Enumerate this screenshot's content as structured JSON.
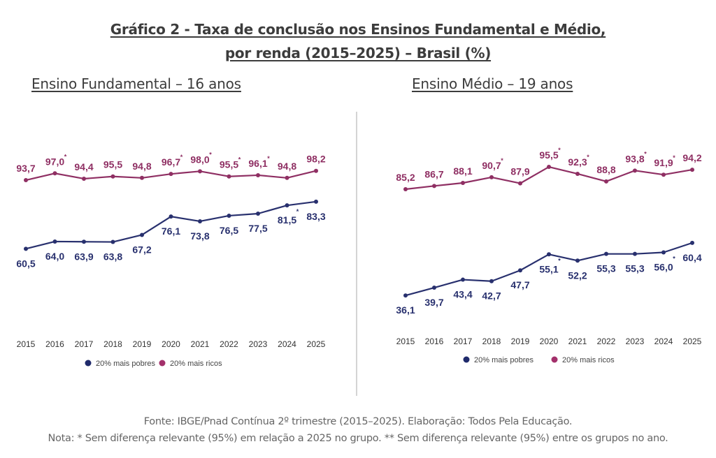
{
  "title_line1": "Gráfico 2 - Taxa de conclusão nos Ensinos Fundamental e Médio,",
  "title_line2": "por renda (2015–2025) – Brasil (%)",
  "footer": {
    "source": "Fonte: IBGE/Pnad Contínua 2º trimestre (2015–2025). Elaboração: Todos Pela Educação.",
    "note": "Nota: * Sem diferença relevante (95%) em relação a 2025 no grupo. ** Sem diferença relevante (95%) entre os grupos no ano."
  },
  "colors": {
    "pobres": "#28306e",
    "ricos": "#8f2f63",
    "legend_pobres": "#1f2a6b",
    "legend_ricos": "#a3306b"
  },
  "chart_data": [
    {
      "type": "line",
      "title": "Ensino Fundamental – 16 anos",
      "xlabel": "",
      "ylabel": "",
      "x": [
        "2015",
        "2016",
        "2017",
        "2018",
        "2019",
        "2020",
        "2021",
        "2022",
        "2023",
        "2024",
        "2025"
      ],
      "series": [
        {
          "name": "20% mais pobres",
          "key": "pobres",
          "values": [
            60.5,
            64.0,
            63.9,
            63.8,
            67.2,
            76.1,
            73.8,
            76.5,
            77.5,
            81.5,
            83.3
          ],
          "labels": [
            "60,5",
            "64,0",
            "63,9",
            "63,8",
            "67,2",
            "76,1",
            "73,8",
            "76,5",
            "77,5",
            "81,5",
            "83,3"
          ],
          "asterisk": [
            false,
            false,
            false,
            false,
            false,
            false,
            false,
            false,
            false,
            true,
            false
          ]
        },
        {
          "name": "20% mais ricos",
          "key": "ricos",
          "values": [
            93.7,
            97.0,
            94.4,
            95.5,
            94.8,
            96.7,
            98.0,
            95.5,
            96.1,
            94.8,
            98.2
          ],
          "labels": [
            "93,7",
            "97,0",
            "94,4",
            "95,5",
            "94,8",
            "96,7",
            "98,0",
            "95,5",
            "96,1",
            "94,8",
            "98,2"
          ],
          "asterisk": [
            false,
            true,
            false,
            false,
            false,
            true,
            true,
            true,
            true,
            false,
            false
          ]
        }
      ],
      "legend": [
        "20% mais pobres",
        "20% mais ricos"
      ],
      "legend_position": "bottom",
      "grid": false
    },
    {
      "type": "line",
      "title": "Ensino Médio – 19 anos",
      "xlabel": "",
      "ylabel": "",
      "x": [
        "2015",
        "2016",
        "2017",
        "2018",
        "2019",
        "2020",
        "2021",
        "2022",
        "2023",
        "2024",
        "2025"
      ],
      "series": [
        {
          "name": "20% mais pobres",
          "key": "pobres",
          "values": [
            36.1,
            39.7,
            43.4,
            42.7,
            47.7,
            55.1,
            52.2,
            55.3,
            55.3,
            56.0,
            60.4
          ],
          "labels": [
            "36,1",
            "39,7",
            "43,4",
            "42,7",
            "47,7",
            "55,1",
            "52,2",
            "55,3",
            "55,3",
            "56,0",
            "60,4"
          ],
          "asterisk": [
            false,
            false,
            false,
            false,
            false,
            true,
            false,
            false,
            false,
            true,
            false
          ]
        },
        {
          "name": "20% mais ricos",
          "key": "ricos",
          "values": [
            85.2,
            86.7,
            88.1,
            90.7,
            87.9,
            95.5,
            92.3,
            88.8,
            93.8,
            91.9,
            94.2
          ],
          "labels": [
            "85,2",
            "86,7",
            "88,1",
            "90,7",
            "87,9",
            "95,5",
            "92,3",
            "88,8",
            "93,8",
            "91,9",
            "94,2"
          ],
          "asterisk": [
            false,
            false,
            false,
            true,
            false,
            true,
            true,
            false,
            true,
            true,
            false
          ]
        }
      ],
      "legend": [
        "20% mais pobres",
        "20% mais ricos"
      ],
      "legend_position": "bottom",
      "grid": false
    }
  ]
}
